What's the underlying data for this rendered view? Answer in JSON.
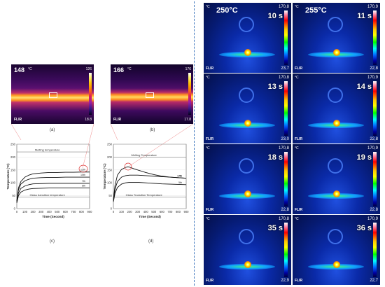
{
  "panel_a": {
    "temp": "148",
    "unit": "°C",
    "scale_max": "126",
    "scale_min": "18.8",
    "brand": "FLIR",
    "label": "(a)"
  },
  "panel_b": {
    "temp": "166",
    "unit": "°C",
    "scale_max": "176",
    "scale_min": "17.8",
    "brand": "FLIR",
    "label": "(b)"
  },
  "chart_c": {
    "label": "(c)",
    "ylabel": "Temperature (°C)",
    "xlabel": "Time (Second)",
    "melting_label": "Melting temperature",
    "glass_label": "Glass transition temperature",
    "yticks": [
      "250",
      "200",
      "150",
      "100",
      "50",
      "0"
    ],
    "xticks": [
      "0",
      "100",
      "200",
      "300",
      "400",
      "500",
      "600",
      "700",
      "800",
      "900"
    ]
  },
  "chart_d": {
    "label": "(d)",
    "ylabel": "Temperature (°C)",
    "xlabel": "Time (Second)",
    "melting_label": "Melting Temperature",
    "glass_label": "Glass Transition Temperature",
    "yticks": [
      "250",
      "200",
      "150",
      "100",
      "50",
      "0"
    ],
    "xticks": [
      "0",
      "100",
      "200",
      "300",
      "400",
      "500",
      "600",
      "700",
      "800",
      "900"
    ]
  },
  "chart_data": [
    {
      "type": "line",
      "xlim": [
        0,
        900
      ],
      "ylim": [
        0,
        250
      ],
      "melting_y": 220,
      "glass_y": 45,
      "series": [
        {
          "name": "12th",
          "x": [
            0,
            20,
            50,
            100,
            150,
            200,
            300,
            400,
            500,
            600,
            700,
            800,
            900
          ],
          "y": [
            30,
            80,
            105,
            122,
            130,
            135,
            138,
            140,
            140,
            141,
            141,
            142,
            142
          ]
        },
        {
          "name": "10th",
          "x": [
            0,
            20,
            50,
            100,
            150,
            200,
            300,
            400,
            500,
            600,
            700,
            800,
            900
          ],
          "y": [
            28,
            72,
            95,
            108,
            114,
            118,
            120,
            121,
            121,
            122,
            122,
            122,
            122
          ]
        },
        {
          "name": "7th",
          "x": [
            0,
            20,
            50,
            100,
            150,
            200,
            300,
            400,
            500,
            600,
            700,
            800,
            900
          ],
          "y": [
            25,
            60,
            78,
            88,
            93,
            96,
            97,
            98,
            98,
            98,
            98,
            98,
            98
          ]
        },
        {
          "name": "5th",
          "x": [
            0,
            20,
            50,
            100,
            150,
            200,
            300,
            400,
            500,
            600,
            700,
            800,
            900
          ],
          "y": [
            22,
            50,
            64,
            72,
            76,
            78,
            79,
            80,
            80,
            80,
            80,
            80,
            80
          ]
        }
      ]
    },
    {
      "type": "line",
      "xlim": [
        0,
        900
      ],
      "ylim": [
        0,
        250
      ],
      "melting_y": 200,
      "glass_y": 45,
      "series": [
        {
          "name": "12th",
          "x": [
            0,
            20,
            50,
            100,
            150,
            180,
            200,
            250,
            300,
            400,
            500,
            600,
            700,
            800,
            900
          ],
          "y": [
            35,
            90,
            130,
            152,
            160,
            162,
            161,
            155,
            150,
            140,
            132,
            126,
            122,
            120,
            118
          ]
        },
        {
          "name": "7th",
          "x": [
            0,
            20,
            50,
            100,
            150,
            200,
            300,
            400,
            500,
            600,
            700,
            800,
            900
          ],
          "y": [
            30,
            75,
            105,
            122,
            128,
            130,
            130,
            128,
            126,
            124,
            122,
            120,
            118
          ]
        },
        {
          "name": "5th",
          "x": [
            0,
            20,
            50,
            100,
            150,
            200,
            300,
            400,
            500,
            600,
            700,
            800,
            900
          ],
          "y": [
            26,
            60,
            82,
            95,
            100,
            102,
            102,
            100,
            98,
            96,
            95,
            94,
            93
          ]
        }
      ]
    }
  ],
  "thermal_grid": {
    "unit": "°C",
    "brand": "FLIR",
    "cells": [
      {
        "time": "10 s",
        "head": "250°C",
        "max": "170,8",
        "min": "23,7"
      },
      {
        "time": "11 s",
        "head": "255°C",
        "max": "170,9",
        "min": "22,8"
      },
      {
        "time": "13 s",
        "head": "",
        "max": "170,8",
        "min": "23,0"
      },
      {
        "time": "14 s",
        "head": "",
        "max": "170,9",
        "min": "22,8"
      },
      {
        "time": "18 s",
        "head": "",
        "max": "170,8",
        "min": "22,8"
      },
      {
        "time": "19 s",
        "head": "",
        "max": "170,9",
        "min": "22,8"
      },
      {
        "time": "35 s",
        "head": "",
        "max": "170,8",
        "min": "22,9"
      },
      {
        "time": "36 s",
        "head": "",
        "max": "170,9",
        "min": "22,7"
      }
    ]
  }
}
